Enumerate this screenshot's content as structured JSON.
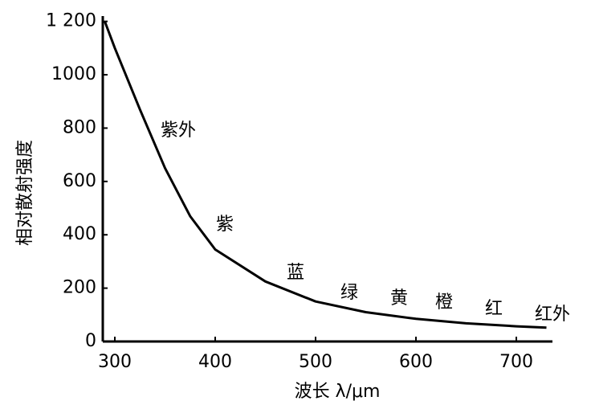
{
  "chart_data": {
    "type": "line",
    "x_label": "波长 λ/μm",
    "y_label": "相对散射强度",
    "x": [
      290,
      300,
      325,
      350,
      375,
      400,
      450,
      500,
      550,
      600,
      650,
      700,
      730
    ],
    "series": [
      {
        "color": "#000000",
        "values": [
          1200,
          1100,
          870,
          650,
          470,
          345,
          225,
          150,
          110,
          85,
          68,
          57,
          52
        ]
      }
    ],
    "xlim": [
      288,
      736
    ],
    "ylim": [
      0,
      1220
    ],
    "xticks": [
      300,
      400,
      500,
      600,
      700
    ],
    "yticks": [
      0,
      200,
      400,
      600,
      800,
      1000,
      {
        "value": 1200,
        "label": "1 200"
      }
    ],
    "grid": false,
    "annotations": [
      "紫外",
      "紫",
      "蓝",
      "绿",
      "黄",
      "橙",
      "红",
      "红外"
    ]
  }
}
